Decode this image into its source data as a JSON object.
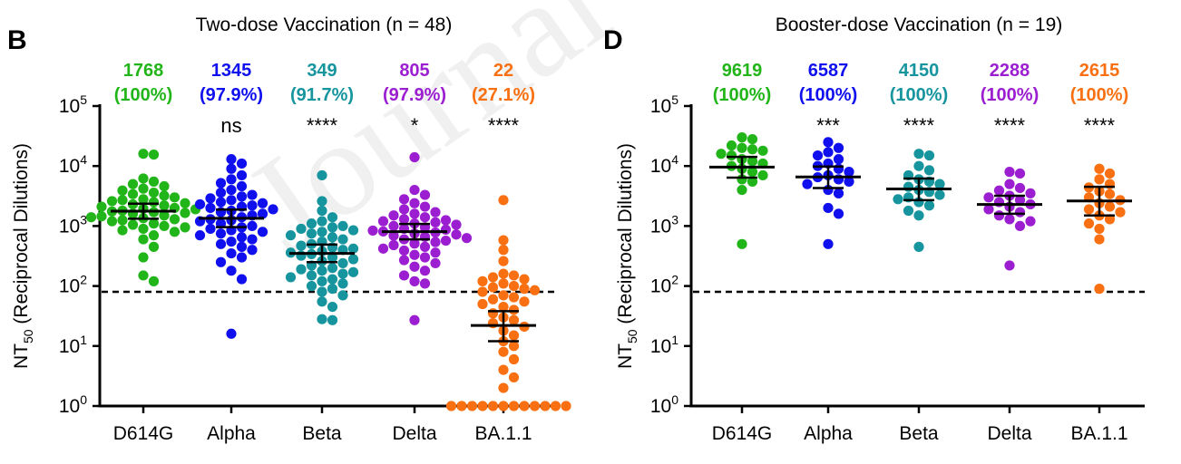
{
  "chart_data": [
    {
      "type": "scatter",
      "panel_letter": "B",
      "title": "Two-dose Vaccination (n = 48)",
      "ylabel_main": "NT",
      "ylabel_sub": "50",
      "ylabel_rest": " (Reciprocal Dilutions)",
      "yscale": "log10",
      "ylim": [
        1,
        100000
      ],
      "yticks": [
        {
          "base": "10",
          "exp": "0"
        },
        {
          "base": "10",
          "exp": "1"
        },
        {
          "base": "10",
          "exp": "2"
        },
        {
          "base": "10",
          "exp": "3"
        },
        {
          "base": "10",
          "exp": "4"
        },
        {
          "base": "10",
          "exp": "5"
        }
      ],
      "threshold": 80,
      "categories": [
        "D614G",
        "Alpha",
        "Beta",
        "Delta",
        "BA.1.1"
      ],
      "series": [
        {
          "name": "D614G",
          "color": "#22b51a",
          "gmt_label": "1768",
          "pct_label": "(100%)",
          "sig": "",
          "gmt": 1768,
          "ci": [
            1320,
            2360
          ],
          "values": [
            16000,
            15500,
            6200,
            5500,
            5000,
            4600,
            4200,
            3900,
            3600,
            3400,
            3200,
            3000,
            2800,
            2700,
            2600,
            2500,
            2400,
            2300,
            2200,
            2100,
            2000,
            1950,
            1900,
            1800,
            1750,
            1700,
            1650,
            1600,
            1500,
            1450,
            1400,
            1350,
            1300,
            1250,
            1200,
            1100,
            1050,
            1000,
            950,
            900,
            850,
            800,
            700,
            600,
            450,
            300,
            150,
            120
          ]
        },
        {
          "name": "Alpha",
          "color": "#1010ee",
          "gmt_label": "1345",
          "pct_label": "(97.9%)",
          "sig": "ns",
          "gmt": 1345,
          "ci": [
            960,
            1880
          ],
          "values": [
            13000,
            11000,
            9000,
            7000,
            6000,
            5200,
            4600,
            4000,
            3600,
            3300,
            3100,
            2900,
            2700,
            2500,
            2400,
            2300,
            2200,
            2100,
            2000,
            1900,
            1800,
            1700,
            1600,
            1500,
            1400,
            1300,
            1250,
            1200,
            1100,
            1000,
            950,
            900,
            850,
            800,
            750,
            700,
            650,
            600,
            550,
            500,
            450,
            400,
            350,
            300,
            250,
            180,
            130,
            16
          ]
        },
        {
          "name": "Beta",
          "color": "#17959e",
          "gmt_label": "349",
          "pct_label": "(91.7%)",
          "sig": "****",
          "gmt": 349,
          "ci": [
            250,
            490
          ],
          "values": [
            7000,
            2600,
            1800,
            1400,
            1200,
            1100,
            1000,
            950,
            900,
            850,
            800,
            750,
            700,
            650,
            600,
            550,
            500,
            470,
            440,
            420,
            400,
            380,
            360,
            340,
            320,
            300,
            280,
            260,
            240,
            220,
            200,
            190,
            180,
            170,
            160,
            150,
            140,
            130,
            120,
            110,
            100,
            90,
            80,
            70,
            55,
            45,
            28,
            27
          ]
        },
        {
          "name": "Delta",
          "color": "#9b1fd0",
          "gmt_label": "805",
          "pct_label": "(97.9%)",
          "sig": "*",
          "gmt": 805,
          "ci": [
            600,
            1080
          ],
          "values": [
            14000,
            4000,
            3300,
            2800,
            2400,
            2100,
            1900,
            1700,
            1600,
            1500,
            1400,
            1300,
            1250,
            1200,
            1150,
            1100,
            1050,
            1000,
            950,
            900,
            870,
            840,
            810,
            780,
            750,
            720,
            690,
            660,
            630,
            600,
            570,
            540,
            510,
            480,
            450,
            420,
            390,
            360,
            330,
            300,
            270,
            240,
            210,
            180,
            150,
            120,
            110,
            27
          ]
        },
        {
          "name": "BA.1.1",
          "color": "#f87012",
          "gmt_label": "22",
          "pct_label": "(27.1%)",
          "sig": "****",
          "gmt": 22,
          "ci": [
            12,
            38
          ],
          "values": [
            2700,
            580,
            400,
            260,
            160,
            150,
            140,
            130,
            120,
            110,
            100,
            95,
            90,
            85,
            80,
            70,
            65,
            60,
            55,
            50,
            45,
            40,
            35,
            30,
            27,
            24,
            21,
            18,
            15,
            12,
            10,
            8,
            6,
            4,
            3,
            2,
            1,
            1,
            1,
            1,
            1,
            1,
            1,
            1,
            1,
            1,
            1,
            1
          ]
        }
      ]
    },
    {
      "type": "scatter",
      "panel_letter": "D",
      "title": "Booster-dose Vaccination (n = 19)",
      "ylabel_main": "NT",
      "ylabel_sub": "50",
      "ylabel_rest": " (Reciprocal Dilutions)",
      "yscale": "log10",
      "ylim": [
        1,
        100000
      ],
      "yticks": [
        {
          "base": "10",
          "exp": "0"
        },
        {
          "base": "10",
          "exp": "1"
        },
        {
          "base": "10",
          "exp": "2"
        },
        {
          "base": "10",
          "exp": "3"
        },
        {
          "base": "10",
          "exp": "4"
        },
        {
          "base": "10",
          "exp": "5"
        }
      ],
      "threshold": 80,
      "categories": [
        "D614G",
        "Alpha",
        "Beta",
        "Delta",
        "BA.1.1"
      ],
      "series": [
        {
          "name": "D614G",
          "color": "#22b51a",
          "gmt_label": "9619",
          "pct_label": "(100%)",
          "sig": "",
          "gmt": 9619,
          "ci": [
            6400,
            14200
          ],
          "values": [
            30000,
            28000,
            22000,
            20000,
            19000,
            18000,
            16000,
            15000,
            13000,
            12000,
            11000,
            10000,
            9000,
            8000,
            7000,
            6000,
            5500,
            4000,
            500
          ]
        },
        {
          "name": "Alpha",
          "color": "#1010ee",
          "gmt_label": "6587",
          "pct_label": "(100%)",
          "sig": "***",
          "gmt": 6587,
          "ci": [
            4300,
            9800
          ],
          "values": [
            25000,
            20000,
            17000,
            15000,
            13000,
            11000,
            10000,
            9000,
            8000,
            7000,
            6500,
            6000,
            5500,
            5000,
            4000,
            3500,
            2000,
            1600,
            500
          ]
        },
        {
          "name": "Beta",
          "color": "#17959e",
          "gmt_label": "4150",
          "pct_label": "(100%)",
          "sig": "****",
          "gmt": 4150,
          "ci": [
            2700,
            6200
          ],
          "values": [
            16000,
            15000,
            10000,
            8500,
            7000,
            6000,
            5500,
            5000,
            4500,
            4000,
            3700,
            3300,
            3000,
            2800,
            2500,
            2200,
            1800,
            1500,
            450
          ]
        },
        {
          "name": "Delta",
          "color": "#9b1fd0",
          "gmt_label": "2288",
          "pct_label": "(100%)",
          "sig": "****",
          "gmt": 2288,
          "ci": [
            1600,
            3200
          ],
          "values": [
            8000,
            7500,
            5000,
            4300,
            3900,
            3500,
            3200,
            3000,
            2700,
            2500,
            2300,
            2100,
            1900,
            1700,
            1500,
            1300,
            1200,
            1000,
            220
          ]
        },
        {
          "name": "BA.1.1",
          "color": "#f87012",
          "gmt_label": "2615",
          "pct_label": "(100%)",
          "sig": "****",
          "gmt": 2615,
          "ci": [
            1500,
            4500
          ],
          "values": [
            9000,
            7500,
            6000,
            5000,
            4400,
            3800,
            3400,
            3000,
            2700,
            2400,
            2100,
            1900,
            1700,
            1500,
            1300,
            1100,
            900,
            600,
            90
          ]
        }
      ]
    }
  ],
  "watermark": "Journal"
}
